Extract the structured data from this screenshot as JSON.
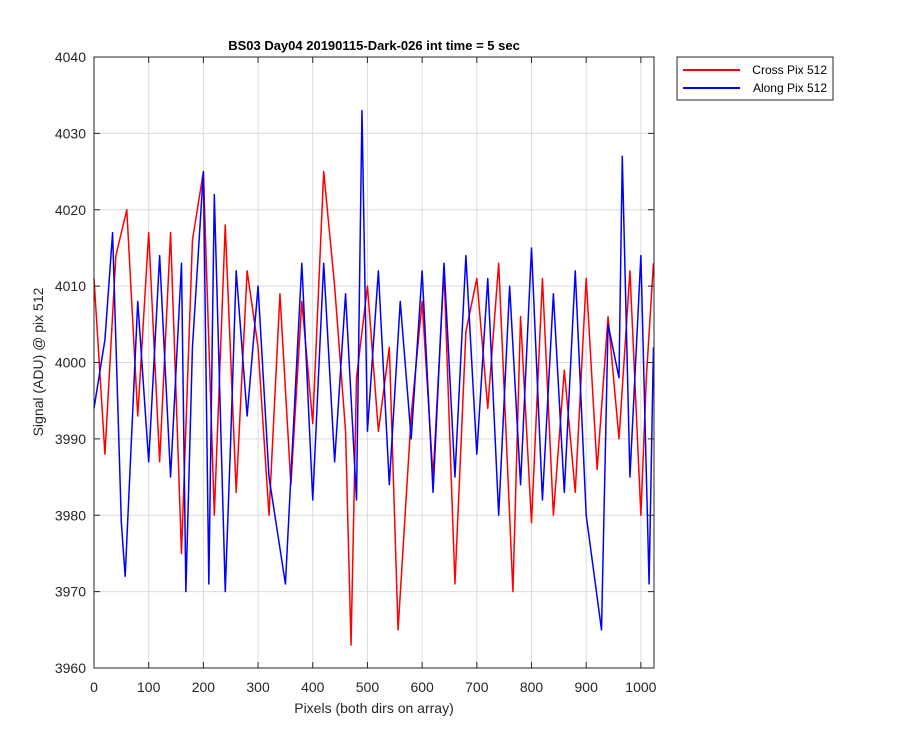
{
  "chart_data": {
    "type": "line",
    "title": "BS03 Day04 20190115-Dark-026 int time = 5 sec",
    "xlabel": "Pixels (both dirs on array)",
    "ylabel": "Signal (ADU) @ pix 512",
    "xlim": [
      0,
      1024
    ],
    "ylim": [
      3960,
      4040
    ],
    "xticks": [
      0,
      100,
      200,
      300,
      400,
      500,
      600,
      700,
      800,
      900,
      1000
    ],
    "yticks": [
      3960,
      3970,
      3980,
      3990,
      4000,
      4010,
      4020,
      4030,
      4040
    ],
    "grid": true,
    "legend_position": "outside-top-right",
    "series": [
      {
        "name": "Cross Pix 512",
        "color": "#ff0000",
        "x": [
          0,
          20,
          40,
          60,
          80,
          100,
          120,
          140,
          160,
          180,
          200,
          220,
          240,
          260,
          280,
          300,
          320,
          340,
          360,
          380,
          400,
          420,
          440,
          460,
          470,
          480,
          500,
          520,
          540,
          556,
          580,
          600,
          620,
          640,
          660,
          680,
          700,
          720,
          740,
          766,
          780,
          800,
          820,
          840,
          860,
          880,
          900,
          920,
          940,
          960,
          980,
          1000,
          1010,
          1023
        ],
        "values": [
          4011,
          3988,
          4014,
          4020,
          3993,
          4017,
          3987,
          4017,
          3975,
          4016,
          4025,
          3980,
          4018,
          3983,
          4012,
          4002,
          3980,
          4009,
          3984,
          4008,
          3992,
          4025,
          4010,
          3991,
          3963,
          3998,
          4010,
          3991,
          4002,
          3965,
          3993,
          4008,
          3985,
          4012,
          3971,
          4004,
          4011,
          3994,
          4013,
          3970,
          4006,
          3979,
          4011,
          3980,
          3999,
          3983,
          4011,
          3986,
          4006,
          3990,
          4012,
          3980,
          3998,
          4013
        ]
      },
      {
        "name": "Along Pix 512",
        "color": "#0000ff",
        "x": [
          0,
          20,
          34,
          50,
          57,
          80,
          100,
          120,
          140,
          160,
          168,
          180,
          200,
          210,
          220,
          240,
          250,
          260,
          280,
          300,
          320,
          350,
          380,
          400,
          420,
          440,
          460,
          480,
          490,
          500,
          520,
          540,
          560,
          580,
          600,
          620,
          640,
          660,
          680,
          700,
          720,
          740,
          760,
          780,
          800,
          820,
          840,
          860,
          880,
          900,
          928,
          940,
          960,
          966,
          980,
          1000,
          1015,
          1023
        ],
        "values": [
          3994,
          4003,
          4017,
          3979,
          3972,
          4008,
          3987,
          4014,
          3985,
          4013,
          3970,
          4002,
          4025,
          3971,
          4022,
          3970,
          3990,
          4012,
          3993,
          4010,
          3985,
          3971,
          4013,
          3982,
          4013,
          3987,
          4009,
          3982,
          4033,
          3991,
          4012,
          3984,
          4008,
          3990,
          4012,
          3983,
          4013,
          3985,
          4014,
          3988,
          4011,
          3980,
          4010,
          3984,
          4015,
          3982,
          4009,
          3983,
          4012,
          3980,
          3965,
          4005,
          3998,
          4027,
          3985,
          4014,
          3971,
          4002
        ]
      }
    ]
  }
}
